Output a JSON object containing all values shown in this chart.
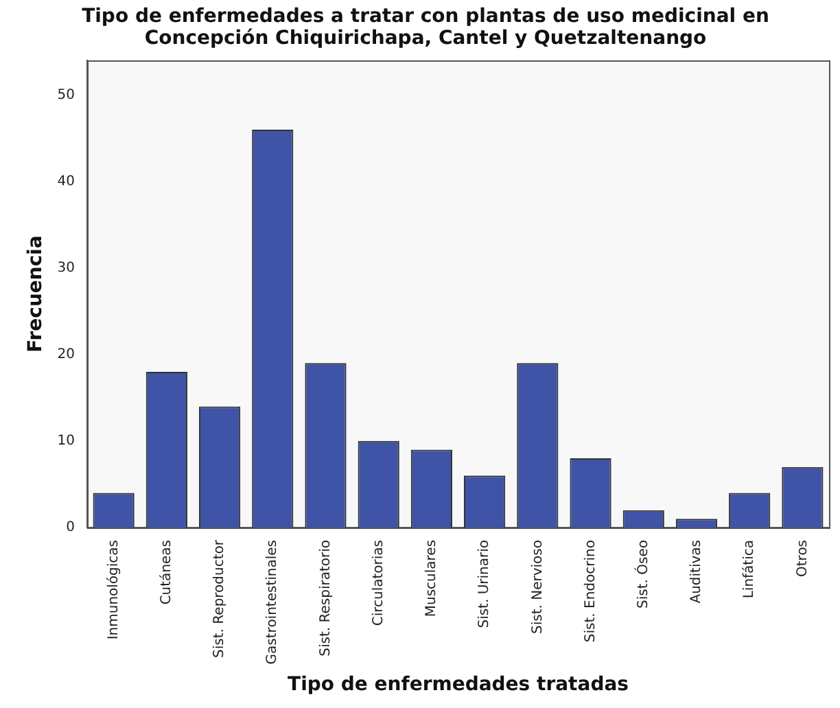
{
  "chart_data": {
    "type": "bar",
    "title": "Tipo de enfermedades a tratar con plantas de uso medicinal en Concepción Chiquirichapa, Cantel y Quetzaltenango",
    "xlabel": "Tipo de enfermedades tratadas",
    "ylabel": "Frecuencia",
    "categories": [
      "Inmunológicas",
      "Cutáneas",
      "Sist. Reproductor",
      "Gastrointestinales",
      "Sist. Respiratorio",
      "Circulatorias",
      "Musculares",
      "Sist. Urinario",
      "Sist. Nervioso",
      "Sist. Endocrino",
      "Sist. Óseo",
      "Auditivas",
      "Linfática",
      "Otros"
    ],
    "values": [
      4,
      18,
      14,
      46,
      19,
      10,
      9,
      6,
      19,
      8,
      2,
      1,
      4,
      7
    ],
    "color": "#3f54a6",
    "ylim": [
      0,
      54
    ],
    "yticks": [
      0,
      10,
      20,
      30,
      40,
      50
    ],
    "grid": false,
    "legend": false
  }
}
